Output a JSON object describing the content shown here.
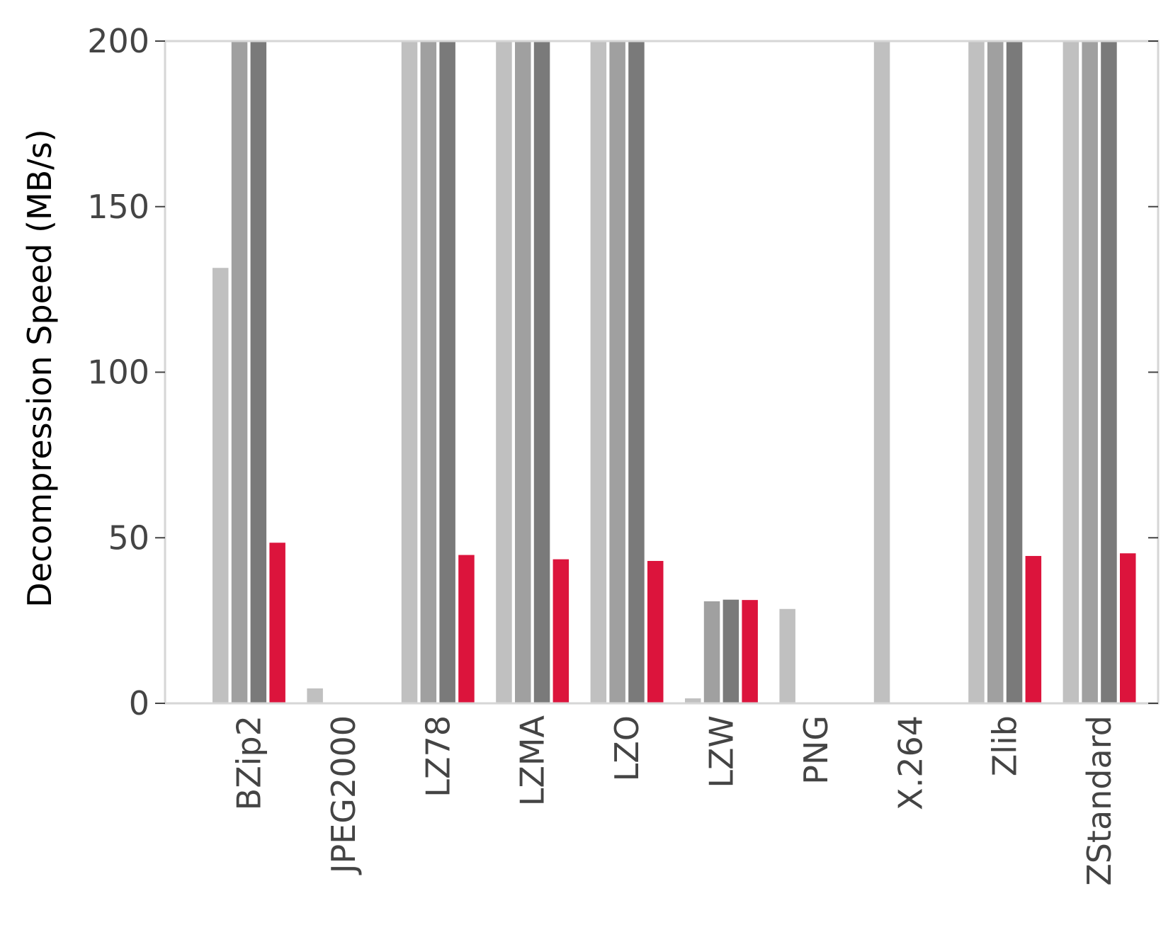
{
  "chart_data": {
    "type": "bar",
    "ylabel": "Decompression Speed (MB/s)",
    "xlabel": "",
    "ylim": [
      0,
      200
    ],
    "yticks": [
      0,
      50,
      100,
      150,
      200
    ],
    "grid": false,
    "categories": [
      "BZip2",
      "JPEG2000",
      "LZ78",
      "LZMA",
      "LZO",
      "LZW",
      "PNG",
      "X.264",
      "Zlib",
      "ZStandard"
    ],
    "series": [
      {
        "color": "#c0c0c0",
        "values": [
          131.5,
          4.5,
          200,
          200,
          200,
          1.5,
          28.5,
          200,
          200,
          200
        ]
      },
      {
        "color": "#a0a0a0",
        "values": [
          200,
          0,
          200,
          200,
          200,
          30.8,
          0,
          0,
          200,
          200
        ]
      },
      {
        "color": "#7a7a7a",
        "values": [
          200,
          0,
          200,
          200,
          200,
          31.3,
          0,
          0,
          200,
          200
        ]
      },
      {
        "color": "#dc143c",
        "values": [
          48.5,
          0,
          44.8,
          43.5,
          43,
          31.2,
          0,
          0,
          44.5,
          45.3
        ]
      }
    ]
  }
}
